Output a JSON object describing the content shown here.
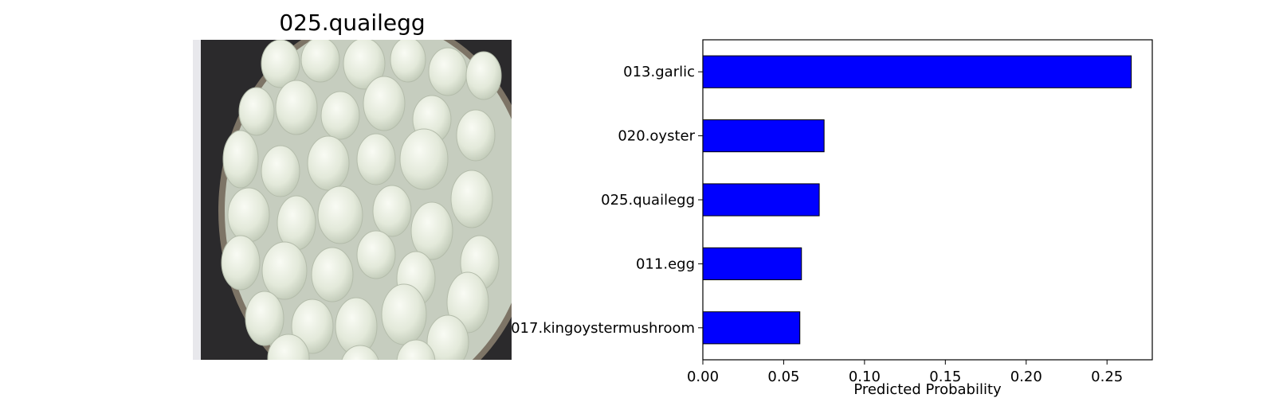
{
  "image_panel": {
    "title": "025.quailegg",
    "image_description": "quail-eggs-photo"
  },
  "chart_data": {
    "type": "bar",
    "orientation": "horizontal",
    "categories": [
      "013.garlic",
      "020.oyster",
      "025.quailegg",
      "011.egg",
      "017.kingoystermushroom"
    ],
    "values": [
      0.265,
      0.075,
      0.072,
      0.061,
      0.06
    ],
    "xlabel": "Predicted Probability",
    "ylabel": "",
    "xlim": [
      0,
      0.278
    ],
    "xticks": [
      "0.00",
      "0.05",
      "0.10",
      "0.15",
      "0.20",
      "0.25"
    ],
    "xtick_values": [
      0,
      0.05,
      0.1,
      0.15,
      0.2,
      0.25
    ],
    "bar_color": "#0000ff",
    "bar_edge_color": "#000000",
    "grid": false
  }
}
